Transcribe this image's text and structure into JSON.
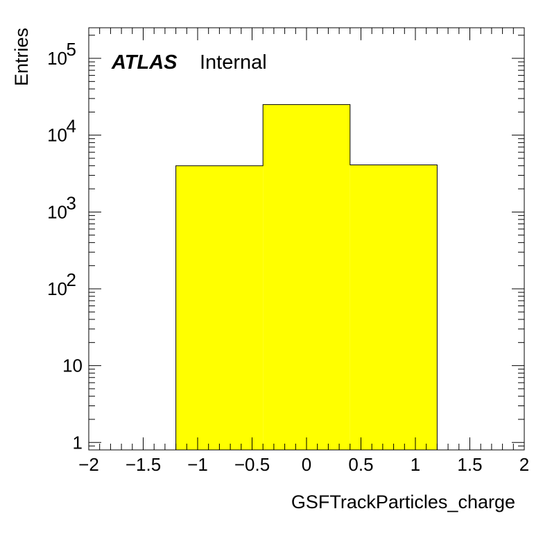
{
  "chart_data": {
    "type": "bar",
    "histogram": true,
    "label_main": "ATLAS",
    "label_sub": "Internal",
    "xlabel": "GSFTrackParticles_charge",
    "ylabel": "Entries",
    "xlim": [
      -2,
      2
    ],
    "ylim": [
      0.8,
      250000
    ],
    "y_scale": "log",
    "fill_color": "#ffff00",
    "line_color": "#000000",
    "bins": [
      {
        "x_low": -1.2,
        "x_high": -0.4,
        "value": 4000
      },
      {
        "x_low": -0.4,
        "x_high": 0.4,
        "value": 25000
      },
      {
        "x_low": 0.4,
        "x_high": 1.2,
        "value": 4100
      }
    ],
    "x_ticks": [
      {
        "value": -2,
        "label": "−2"
      },
      {
        "value": -1.5,
        "label": "−1.5"
      },
      {
        "value": -1,
        "label": "−1"
      },
      {
        "value": -0.5,
        "label": "−0.5"
      },
      {
        "value": 0,
        "label": "0"
      },
      {
        "value": 0.5,
        "label": "0.5"
      },
      {
        "value": 1,
        "label": "1"
      },
      {
        "value": 1.5,
        "label": "1.5"
      },
      {
        "value": 2,
        "label": "2"
      }
    ],
    "y_ticks": [
      {
        "value": 1,
        "base": "1",
        "exp": ""
      },
      {
        "value": 10,
        "base": "10",
        "exp": ""
      },
      {
        "value": 100,
        "base": "10",
        "exp": "2"
      },
      {
        "value": 1000,
        "base": "10",
        "exp": "3"
      },
      {
        "value": 10000,
        "base": "10",
        "exp": "4"
      },
      {
        "value": 100000,
        "base": "10",
        "exp": "5"
      }
    ]
  }
}
